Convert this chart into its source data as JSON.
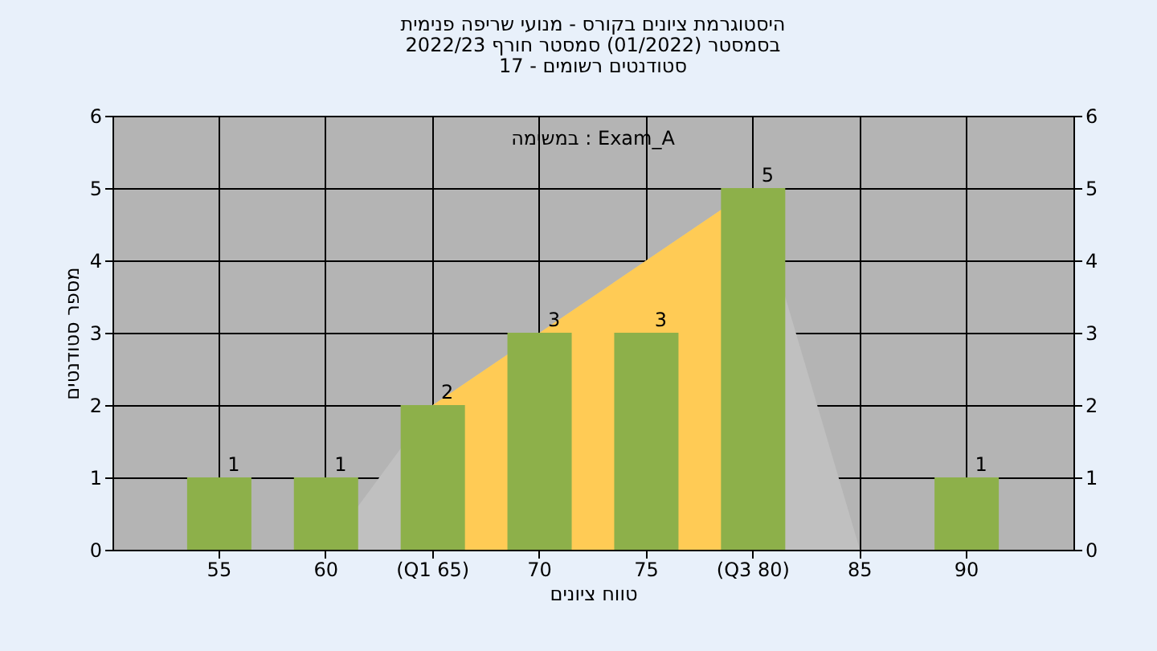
{
  "chart_data": {
    "type": "bar",
    "title": [
      "היסטוגרמת ציונים בקורס - מנועי שריפה פנימית",
      "בסמסטר  (01/2022)  סמסטר חורף 2022/23",
      "סטודנטים רשומים - 17"
    ],
    "xlabel": "טווח ציונים",
    "ylabel": "מספר סטודנטים",
    "annotations": [
      "במשימה : Exam_A"
    ],
    "categories": [
      "55",
      "60",
      "(Q1 65)",
      "70",
      "75",
      "(Q3 80)",
      "85",
      "90"
    ],
    "series": [
      {
        "type": "area",
        "color": "#c0c0c0",
        "values": [
          null,
          0,
          2,
          null,
          null,
          5,
          0,
          null
        ]
      },
      {
        "type": "area",
        "color": "#ffcb55",
        "values": [
          null,
          null,
          2,
          3,
          4,
          5,
          null,
          null
        ]
      },
      {
        "color": "#8db04a",
        "values": [
          1,
          1,
          2,
          3,
          3,
          5,
          0,
          1
        ],
        "value_labels": [
          "1",
          "1",
          "2",
          "3",
          "3",
          "5",
          null,
          "1"
        ]
      }
    ],
    "ylim": [
      0,
      6
    ],
    "yticks": [
      0,
      1,
      2,
      3,
      4,
      5,
      6
    ],
    "y2lim": [
      0,
      6
    ],
    "y2ticks": [
      0,
      1,
      2,
      3,
      4,
      5,
      6
    ],
    "grid": true
  }
}
